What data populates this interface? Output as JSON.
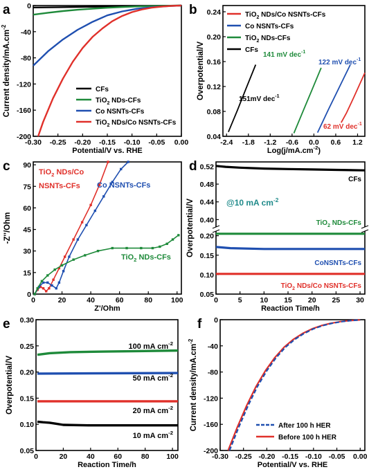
{
  "chart_data": [
    {
      "id": "a",
      "type": "line",
      "panel_label": "a",
      "xlabel": "Potential/V vs. RHE",
      "ylabel": "Current density/mA.cm-2",
      "xlim": [
        -0.3,
        0.0
      ],
      "ylim": [
        -200,
        0
      ],
      "xticks": [
        -0.3,
        -0.25,
        -0.2,
        -0.15,
        -0.1,
        -0.05,
        0.0
      ],
      "xtick_labels": [
        "-0.30",
        "-0.25",
        "-0.20",
        "-0.15",
        "-0.10",
        "-0.05",
        "0.00"
      ],
      "yticks": [
        -200,
        -160,
        -120,
        -80,
        -40,
        0
      ],
      "ytick_labels": [
        "-200",
        "-160",
        "-120",
        "-80",
        "-40",
        "0"
      ],
      "legend_position": "bottom-right",
      "series": [
        {
          "name": "CFs",
          "color": "#000000",
          "x": [
            -0.3,
            -0.25,
            -0.2,
            -0.15,
            -0.1,
            -0.05,
            0.0
          ],
          "y": [
            -3,
            -2.5,
            -2,
            -1.5,
            -1,
            -0.5,
            0
          ]
        },
        {
          "name": "TiO2 NDs-CFs",
          "color": "#1e8a3a",
          "x": [
            -0.3,
            -0.27,
            -0.24,
            -0.21,
            -0.18,
            -0.15,
            -0.12,
            -0.09,
            -0.06,
            -0.03,
            0.0
          ],
          "y": [
            -14,
            -11,
            -8.5,
            -6.5,
            -4.8,
            -3.4,
            -2.3,
            -1.4,
            -0.8,
            -0.3,
            0
          ]
        },
        {
          "name": "Co NSNTs-CFs",
          "color": "#1f4fb0",
          "x": [
            -0.3,
            -0.27,
            -0.24,
            -0.21,
            -0.18,
            -0.15,
            -0.12,
            -0.09,
            -0.06,
            -0.03,
            0.0
          ],
          "y": [
            -92,
            -70,
            -52,
            -37,
            -25,
            -15,
            -9,
            -5,
            -2.5,
            -1,
            0
          ]
        },
        {
          "name": "TiO2 NDs/Co NSNTs-CFs",
          "color": "#e0302a",
          "x": [
            -0.29,
            -0.28,
            -0.26,
            -0.24,
            -0.22,
            -0.2,
            -0.18,
            -0.16,
            -0.14,
            -0.12,
            -0.1,
            -0.08,
            -0.06,
            -0.04,
            -0.02,
            0.0
          ],
          "y": [
            -200,
            -178,
            -142,
            -112,
            -86,
            -65,
            -48,
            -35,
            -24,
            -16,
            -10,
            -6,
            -3.3,
            -1.6,
            -0.5,
            0
          ]
        }
      ]
    },
    {
      "id": "b",
      "type": "line",
      "panel_label": "b",
      "xlabel": "Log(j/mA.cm-2)",
      "ylabel": "Overpotential/V",
      "xlim": [
        -2.5,
        1.4
      ],
      "ylim": [
        0.04,
        0.25
      ],
      "xticks": [
        -2.4,
        -1.8,
        -1.2,
        -0.6,
        0.0,
        0.6,
        1.2
      ],
      "xtick_labels": [
        "-2.4",
        "-1.8",
        "-1.2",
        "-0.6",
        "0.0",
        "0.6",
        "1.2"
      ],
      "yticks": [
        0.04,
        0.08,
        0.12,
        0.16,
        0.2,
        0.24
      ],
      "ytick_labels": [
        "0.04",
        "0.08",
        "0.12",
        "0.16",
        "0.20",
        "0.24"
      ],
      "legend_position": "top-left",
      "annotations": [
        "151mV dec-1",
        "141 mV dec-1",
        "122 mV dec-1",
        "62 mV dec-1"
      ],
      "series": [
        {
          "name": "TiO2 NDs/Co NSNTs-CFs",
          "color": "#e0302a",
          "x": [
            0.75,
            0.9,
            1.1,
            1.4
          ],
          "y": [
            0.062,
            0.078,
            0.103,
            0.142
          ]
        },
        {
          "name": "Co NSNTs-CFs",
          "color": "#1f4fb0",
          "x": [
            0.1,
            0.4,
            0.7,
            1.0
          ],
          "y": [
            0.046,
            0.083,
            0.119,
            0.155
          ]
        },
        {
          "name": "TiO2 NDs-CFs",
          "color": "#1e8a3a",
          "x": [
            -0.55,
            -0.3,
            -0.05,
            0.2
          ],
          "y": [
            0.045,
            0.08,
            0.115,
            0.15
          ]
        },
        {
          "name": "CFs",
          "color": "#000000",
          "x": [
            -2.35,
            -2.1,
            -1.85,
            -1.6
          ],
          "y": [
            0.047,
            0.082,
            0.119,
            0.155
          ]
        }
      ]
    },
    {
      "id": "c",
      "type": "line",
      "panel_label": "c",
      "xlabel": "Z'/Ohm",
      "ylabel": "-Z''/Ohm",
      "xlim": [
        0,
        103
      ],
      "ylim": [
        0,
        92
      ],
      "xticks": [
        0,
        20,
        40,
        60,
        80,
        100
      ],
      "xtick_labels": [
        "0",
        "20",
        "40",
        "60",
        "80",
        "100"
      ],
      "yticks": [
        0,
        15,
        30,
        45,
        60,
        75,
        90
      ],
      "ytick_labels": [
        "0",
        "15",
        "30",
        "45",
        "60",
        "75",
        "90"
      ],
      "annotations": [
        "TiO2 NDs/Co",
        "NSNTs-CFs",
        "Co NSNTs-CFs",
        "TiO2 NDs-CFs"
      ],
      "series": [
        {
          "name": "TiO2 NDs/Co NSNTs-CFs",
          "color": "#e0302a",
          "x": [
            1,
            3,
            5,
            7,
            9,
            11,
            14,
            18,
            22,
            28,
            34,
            40,
            46,
            52
          ],
          "y": [
            0,
            3,
            5,
            4,
            2,
            4,
            10,
            18,
            26,
            38,
            50,
            62,
            76,
            92
          ]
        },
        {
          "name": "Co NSNTs-CFs",
          "color": "#1f4fb0",
          "x": [
            1,
            4,
            7,
            10,
            13,
            16,
            18,
            21,
            25,
            31,
            37,
            43,
            49,
            55,
            61,
            66
          ],
          "y": [
            0,
            5,
            8,
            8,
            6,
            4,
            8,
            16,
            26,
            38,
            48,
            58,
            68,
            78,
            87,
            92
          ]
        },
        {
          "name": "TiO2 NDs-CFs",
          "color": "#1e8a3a",
          "x": [
            1,
            3,
            6,
            10,
            15,
            20,
            28,
            36,
            45,
            55,
            65,
            75,
            83,
            88,
            93,
            97,
            101
          ],
          "y": [
            0,
            4,
            9,
            13,
            17,
            20,
            24,
            27,
            30,
            32,
            32,
            32,
            32,
            33,
            35,
            38,
            41
          ]
        }
      ]
    },
    {
      "id": "d",
      "type": "line",
      "panel_label": "d",
      "xlabel": "Reaction Time/h",
      "ylabel": "Overpotential/V",
      "xlim": [
        0,
        31
      ],
      "broken_y_axis": true,
      "upper_ylim": [
        0.385,
        0.53
      ],
      "lower_ylim": [
        0.05,
        0.21
      ],
      "xticks": [
        0,
        5,
        10,
        15,
        20,
        25,
        30
      ],
      "xtick_labels": [
        "0",
        "5",
        "10",
        "15",
        "20",
        "25",
        "30"
      ],
      "upper_yticks": [
        0.4,
        0.44,
        0.48,
        0.52
      ],
      "upper_ytick_labels": [
        "0.40",
        "0.44",
        "0.48",
        "0.52"
      ],
      "lower_yticks": [
        0.05,
        0.1,
        0.15,
        0.2
      ],
      "lower_ytick_labels": [
        "0.05",
        "0.10",
        "0.15",
        "0.20"
      ],
      "condition_label": "@10 mA cm-2",
      "series": [
        {
          "name": "CFs",
          "color": "#000000",
          "x": [
            0,
            2,
            5,
            10,
            15,
            20,
            25,
            31
          ],
          "y": [
            0.521,
            0.519,
            0.517,
            0.515,
            0.514,
            0.513,
            0.512,
            0.511
          ]
        },
        {
          "name": "TiO2 NDs-CFs",
          "color": "#1e8a3a",
          "x": [
            0,
            31
          ],
          "y": [
            0.205,
            0.205
          ]
        },
        {
          "name": "CoNSNTs-CFs",
          "color": "#1f4fb0",
          "x": [
            0,
            3,
            10,
            20,
            31
          ],
          "y": [
            0.171,
            0.168,
            0.166,
            0.166,
            0.166
          ]
        },
        {
          "name": "TiO2 NDs/Co NSNTs-CFs",
          "color": "#e0302a",
          "x": [
            0,
            31
          ],
          "y": [
            0.102,
            0.102
          ]
        }
      ]
    },
    {
      "id": "e",
      "type": "line",
      "panel_label": "e",
      "xlabel": "Reaction Time/h",
      "ylabel": "Overpotential/V",
      "xlim": [
        0,
        104
      ],
      "ylim": [
        0.05,
        0.3
      ],
      "xticks": [
        0,
        20,
        40,
        60,
        80,
        100
      ],
      "xtick_labels": [
        "0",
        "20",
        "40",
        "60",
        "80",
        "100"
      ],
      "yticks": [
        0.05,
        0.1,
        0.15,
        0.2,
        0.25,
        0.3
      ],
      "ytick_labels": [
        "0.05",
        "0.10",
        "0.15",
        "0.20",
        "0.25",
        "0.30"
      ],
      "series": [
        {
          "name": "100 mA cm-2",
          "color": "#1e8a3a",
          "x": [
            1,
            10,
            25,
            50,
            75,
            104
          ],
          "y": [
            0.233,
            0.236,
            0.238,
            0.239,
            0.24,
            0.241
          ]
        },
        {
          "name": "50 mA cm-2",
          "color": "#1f4fb0",
          "x": [
            1,
            104
          ],
          "y": [
            0.197,
            0.198
          ]
        },
        {
          "name": "20 mA cm-2",
          "color": "#e0302a",
          "x": [
            1,
            104
          ],
          "y": [
            0.144,
            0.144
          ]
        },
        {
          "name": "10 mA cm-2",
          "color": "#000000",
          "x": [
            1,
            5,
            10,
            15,
            20,
            40,
            104
          ],
          "y": [
            0.105,
            0.104,
            0.103,
            0.101,
            0.099,
            0.098,
            0.098
          ]
        }
      ]
    },
    {
      "id": "f",
      "type": "line",
      "panel_label": "f",
      "xlabel": "Potential/V vs. RHE",
      "ylabel": "Current density/mA.cm-2",
      "xlim": [
        -0.3,
        0.01
      ],
      "ylim": [
        -200,
        0
      ],
      "xticks": [
        -0.3,
        -0.25,
        -0.2,
        -0.15,
        -0.1,
        -0.05,
        0.0
      ],
      "xtick_labels": [
        "-0.30",
        "-0.25",
        "-0.20",
        "-0.15",
        "-0.10",
        "-0.05",
        "0.00"
      ],
      "yticks": [
        -200,
        -160,
        -120,
        -80,
        -40,
        0
      ],
      "ytick_labels": [
        "-200",
        "-160",
        "-120",
        "-80",
        "-40",
        "0"
      ],
      "legend_position": "bottom-right",
      "series": [
        {
          "name": "After 100 h HER",
          "color": "#1f4fb0",
          "dash": true,
          "x": [
            -0.28,
            -0.26,
            -0.24,
            -0.22,
            -0.2,
            -0.18,
            -0.16,
            -0.14,
            -0.12,
            -0.1,
            -0.08,
            -0.06,
            -0.04,
            -0.02,
            0.0
          ],
          "y": [
            -200,
            -164,
            -131,
            -102,
            -78,
            -58,
            -42,
            -30,
            -21,
            -14,
            -9,
            -5.5,
            -3,
            -1.4,
            -0.3
          ]
        },
        {
          "name": "Before 100 h HER",
          "color": "#e0302a",
          "x": [
            -0.283,
            -0.263,
            -0.243,
            -0.223,
            -0.203,
            -0.183,
            -0.163,
            -0.143,
            -0.123,
            -0.103,
            -0.083,
            -0.063,
            -0.043,
            -0.023,
            0.0
          ],
          "y": [
            -200,
            -164,
            -131,
            -102,
            -78,
            -58,
            -42,
            -30,
            -21,
            -14,
            -9,
            -5.5,
            -3,
            -1.4,
            -0.3
          ]
        }
      ]
    }
  ]
}
